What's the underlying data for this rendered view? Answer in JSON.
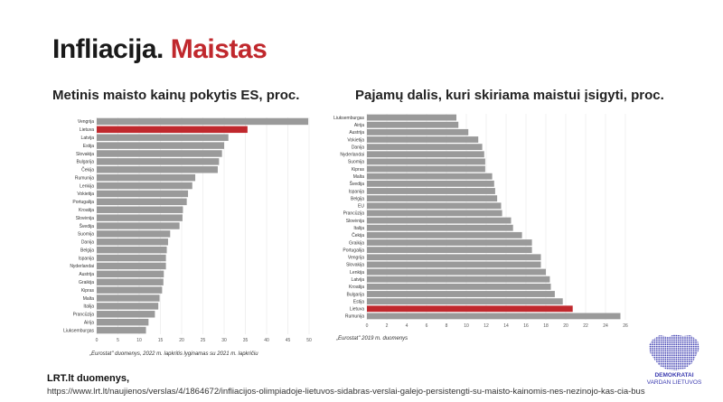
{
  "header": {
    "title_part1": "Infliacija.",
    "title_part2": "Maistas"
  },
  "colors": {
    "bar": "#9a9a9a",
    "highlight": "#c0282d",
    "grid": "#e6e6e6",
    "logo": "#3b3bb0"
  },
  "chart_data": [
    {
      "type": "bar",
      "orientation": "horizontal",
      "title": "Metinis maisto kainų pokytis ES, proc.",
      "highlight": "Lietuva",
      "categories": [
        "Vengrija",
        "Lietuva",
        "Latvija",
        "Estija",
        "Slovakija",
        "Bulgarija",
        "Čekija",
        "Rumunija",
        "Lenkija",
        "Vokietija",
        "Portugalija",
        "Kroatija",
        "Slovėnija",
        "Švedija",
        "Suomija",
        "Danija",
        "Belgija",
        "Ispanija",
        "Nyderlandai",
        "Austrija",
        "Graikija",
        "Kipras",
        "Malta",
        "Italija",
        "Prancūzija",
        "Airija",
        "Liuksemburgas"
      ],
      "values": [
        49.8,
        35.5,
        31,
        30,
        29.5,
        28.8,
        28.5,
        23.2,
        22.5,
        21.5,
        21.2,
        20.3,
        20.2,
        19.5,
        17.3,
        16.8,
        16.5,
        16.3,
        16.3,
        15.8,
        15.7,
        15.4,
        14.8,
        14.5,
        13.7,
        12.2,
        11.6
      ],
      "xlim": [
        0,
        50
      ],
      "xticks": [
        "0",
        "5",
        "10",
        "15",
        "20",
        "25",
        "30",
        "35",
        "40",
        "45",
        "50"
      ],
      "note": "„Eurostat\" duomenys, 2022 m. lapkritis lyginamas su 2021 m. lapkričiu"
    },
    {
      "type": "bar",
      "orientation": "horizontal",
      "title": "Pajamų dalis, kuri skiriama maistui įsigyti, proc.",
      "highlight": "Lietuva",
      "categories": [
        "Liuksemburgas",
        "Airija",
        "Austrija",
        "Vokietija",
        "Danija",
        "Nyderlandai",
        "Suomija",
        "Kipras",
        "Malta",
        "Švedija",
        "Ispanija",
        "Belgija",
        "EU",
        "Prancūzija",
        "Slovėnija",
        "Italija",
        "Čekija",
        "Graikija",
        "Portugalija",
        "Vengrija",
        "Slovakija",
        "Lenkija",
        "Latvija",
        "Kroatija",
        "Bulgarija",
        "Estija",
        "Lietuva",
        "Rumunija"
      ],
      "values": [
        9.0,
        9.2,
        10.2,
        11.2,
        11.6,
        11.8,
        11.9,
        11.9,
        12.6,
        12.8,
        12.9,
        13.1,
        13.5,
        13.6,
        14.5,
        14.7,
        15.6,
        16.6,
        16.6,
        17.5,
        17.5,
        18.0,
        18.4,
        18.5,
        18.9,
        19.7,
        20.7,
        25.5
      ],
      "xlim": [
        0,
        26
      ],
      "xticks": [
        "0",
        "2",
        "4",
        "6",
        "8",
        "10",
        "12",
        "14",
        "16",
        "18",
        "20",
        "22",
        "24",
        "26"
      ],
      "note": "„Eurostat\" 2019 m. duomenys"
    }
  ],
  "source": {
    "title": "LRT.lt duomenys,",
    "url": "https://www.lrt.lt/naujienos/verslas/4/1864672/infliacijos-olimpiadoje-lietuvos-sidabras-verslai-galejo-persistengti-su-maisto-kainomis-nes-nezinojo-kas-cia-bus"
  },
  "logo": {
    "line1": "DEMOKRATAI",
    "line2": "VARDAN LIETUVOS"
  }
}
